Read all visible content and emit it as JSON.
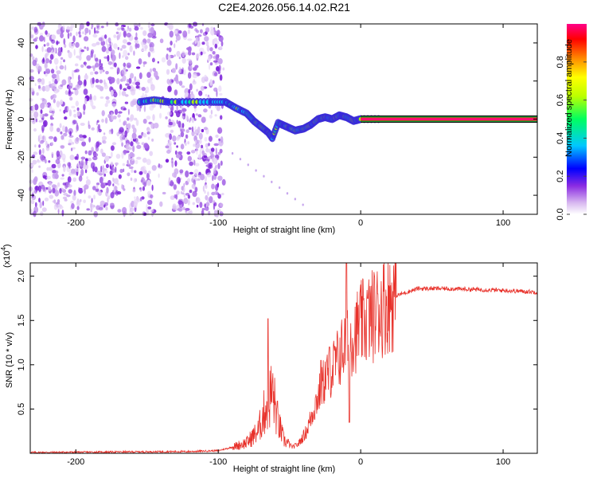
{
  "title": "C2E4.2026.056.14.02.R21",
  "chart_data": [
    {
      "type": "heatmap",
      "name": "spectrogram",
      "xlabel": "Height of straight line (km)",
      "ylabel": "Frequency (Hz)",
      "xlim": [
        -232,
        124
      ],
      "ylim": [
        -50,
        50
      ],
      "xticks": [
        -200,
        -100,
        0,
        100
      ],
      "yticks": [
        -40,
        -20,
        0,
        20,
        40
      ],
      "noise_region_km": [
        -232,
        -96
      ],
      "tone_start_km": 0,
      "tone_freq_hz": 0,
      "ridge": [
        {
          "x": -155,
          "y": 9
        },
        {
          "x": -145,
          "y": 10
        },
        {
          "x": -135,
          "y": 9
        },
        {
          "x": -120,
          "y": 9
        },
        {
          "x": -105,
          "y": 9
        },
        {
          "x": -95,
          "y": 9
        },
        {
          "x": -88,
          "y": 6
        },
        {
          "x": -80,
          "y": 3
        },
        {
          "x": -75,
          "y": -1
        },
        {
          "x": -70,
          "y": -4
        },
        {
          "x": -65,
          "y": -7
        },
        {
          "x": -62,
          "y": -10
        },
        {
          "x": -58,
          "y": -2
        },
        {
          "x": -52,
          "y": -4
        },
        {
          "x": -46,
          "y": -6
        },
        {
          "x": -40,
          "y": -5
        },
        {
          "x": -35,
          "y": -3
        },
        {
          "x": -30,
          "y": 0
        },
        {
          "x": -25,
          "y": 1
        },
        {
          "x": -20,
          "y": 0
        },
        {
          "x": -15,
          "y": 2
        },
        {
          "x": -10,
          "y": 1
        },
        {
          "x": -5,
          "y": -1
        },
        {
          "x": 0,
          "y": 0
        },
        {
          "x": 15,
          "y": 0
        }
      ],
      "colorbar": {
        "label": "Normalized spectral amplitude",
        "ticks": [
          0.0,
          0.2,
          0.4,
          0.6,
          0.8
        ]
      }
    },
    {
      "type": "line",
      "name": "snr",
      "color": "#e8312a",
      "xlabel": "Height of straight line (km)",
      "ylabel": "SNR (10 * v/v)",
      "yscale_label": "(x10",
      "yscale_exp": "4",
      "xlim": [
        -232,
        124
      ],
      "ylim": [
        0,
        2.15
      ],
      "xticks": [
        -200,
        -100,
        0,
        100
      ],
      "yticks": [
        0.5,
        1.0,
        1.5,
        2.0
      ],
      "ytick_labels": [
        "0.5",
        "1.0",
        "1.5",
        "2.0"
      ],
      "envelope": [
        [
          -232,
          0.01
        ],
        [
          -120,
          0.02
        ],
        [
          -100,
          0.03
        ],
        [
          -90,
          0.07
        ],
        [
          -80,
          0.12
        ],
        [
          -72,
          0.25
        ],
        [
          -66,
          0.55
        ],
        [
          -62,
          0.7
        ],
        [
          -58,
          0.35
        ],
        [
          -54,
          0.15
        ],
        [
          -48,
          0.07
        ],
        [
          -44,
          0.1
        ],
        [
          -38,
          0.25
        ],
        [
          -32,
          0.55
        ],
        [
          -25,
          0.85
        ],
        [
          -18,
          1.0
        ],
        [
          -12,
          1.2
        ],
        [
          -5,
          1.35
        ],
        [
          0,
          1.45
        ],
        [
          8,
          1.55
        ],
        [
          15,
          1.65
        ],
        [
          25,
          1.78
        ],
        [
          40,
          1.86
        ],
        [
          60,
          1.86
        ],
        [
          80,
          1.85
        ],
        [
          100,
          1.84
        ],
        [
          124,
          1.82
        ]
      ],
      "spikes": [
        {
          "x": -65,
          "y": 1.52
        },
        {
          "x": -47,
          "y": 0.08
        },
        {
          "x": -28,
          "y": 1.05
        },
        {
          "x": -22,
          "y": 1.2
        },
        {
          "x": -10,
          "y": 2.15
        },
        {
          "x": -8,
          "y": 0.35
        },
        {
          "x": -3,
          "y": 1.7
        },
        {
          "x": 5,
          "y": 1.75
        },
        {
          "x": 12,
          "y": 1.8
        }
      ]
    }
  ]
}
